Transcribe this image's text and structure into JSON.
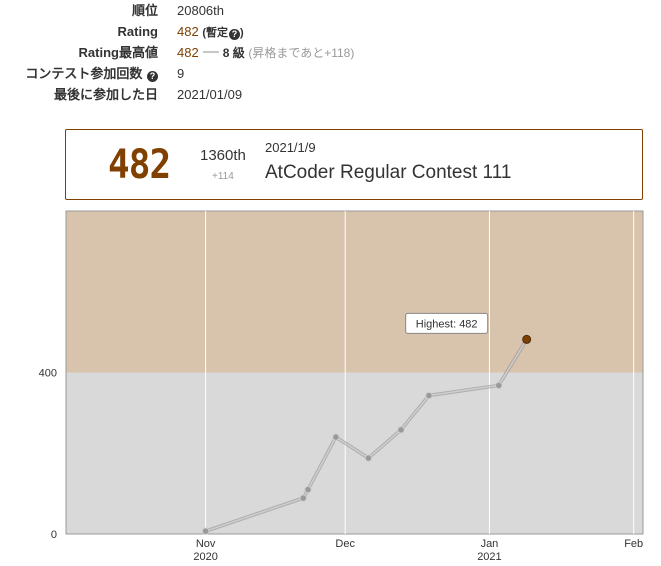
{
  "profile": {
    "rank_label": "順位",
    "rank_value": "20806th",
    "rating_label": "Rating",
    "rating_value": "482",
    "rating_provisional": "(暫定",
    "rating_provisional_close": ")",
    "highest_label": "Rating最高値",
    "highest_value": "482",
    "highest_grade": "8 級",
    "highest_note": "(昇格まであと+118)",
    "contests_label": "コンテスト参加回数",
    "contests_value": "9",
    "last_label": "最後に参加した日",
    "last_value": "2021/01/09",
    "help_icon_glyph": "?"
  },
  "latest": {
    "rating": "482",
    "place": "1360th",
    "diff": "+114",
    "date": "2021/1/9",
    "contest": "AtCoder Regular Contest 111"
  },
  "colors": {
    "brown": "#804000",
    "brown_band": "#d8c3ad",
    "gray_band": "#d9d9d9",
    "line": "#aaaaaa",
    "point": "#888888"
  },
  "chart_data": {
    "type": "line",
    "tooltip": "Highest: 482",
    "x_ticks": [
      {
        "label": "Nov",
        "sub": "2020",
        "date": "2020-11-01"
      },
      {
        "label": "Dec",
        "sub": "",
        "date": "2020-12-01"
      },
      {
        "label": "Jan",
        "sub": "2021",
        "date": "2021-01-01"
      },
      {
        "label": "Feb",
        "sub": "",
        "date": "2021-02-01"
      }
    ],
    "y_ticks": [
      "0",
      "400"
    ],
    "ylim": [
      0,
      800
    ],
    "xlim": [
      "2020-10-02",
      "2021-02-03"
    ],
    "bands": [
      {
        "from": 0,
        "to": 400,
        "color": "#d9d9d9"
      },
      {
        "from": 400,
        "to": 800,
        "color": "#d8c3ad"
      }
    ],
    "x": [
      "2020-11-01",
      "2020-11-22",
      "2020-11-23",
      "2020-11-29",
      "2020-12-06",
      "2020-12-13",
      "2020-12-19",
      "2021-01-03",
      "2021-01-09"
    ],
    "values": [
      7,
      89,
      110,
      240,
      188,
      258,
      343,
      368,
      482
    ]
  }
}
